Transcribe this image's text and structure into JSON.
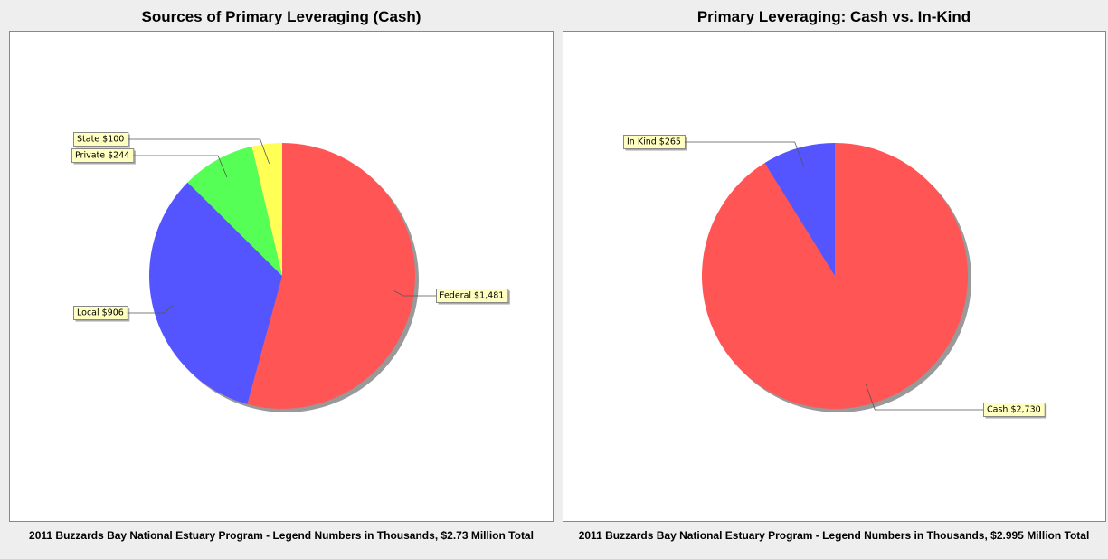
{
  "chart_data": [
    {
      "type": "pie",
      "title": "Sources of Primary Leveraging (Cash)",
      "categories": [
        "Federal",
        "Local",
        "Private",
        "State"
      ],
      "values": [
        1481,
        906,
        244,
        100
      ],
      "value_labels": [
        "Federal $1,481",
        "Local $906",
        "Private $244",
        "State $100"
      ],
      "colors": [
        "#ff5555",
        "#5555ff",
        "#55ff55",
        "#ffff55"
      ],
      "caption": "2011 Buzzards Bay National Estuary Program - Legend Numbers in Thousands, $2.73 Million Total"
    },
    {
      "type": "pie",
      "title": "Primary Leveraging: Cash vs. In-Kind",
      "categories": [
        "Cash",
        "In Kind"
      ],
      "values": [
        2730,
        265
      ],
      "value_labels": [
        "Cash $2,730",
        "In Kind $265"
      ],
      "colors": [
        "#ff5555",
        "#5555ff"
      ],
      "caption": "2011 Buzzards Bay National Estuary Program - Legend Numbers in Thousands, $2.995 Million Total"
    }
  ]
}
